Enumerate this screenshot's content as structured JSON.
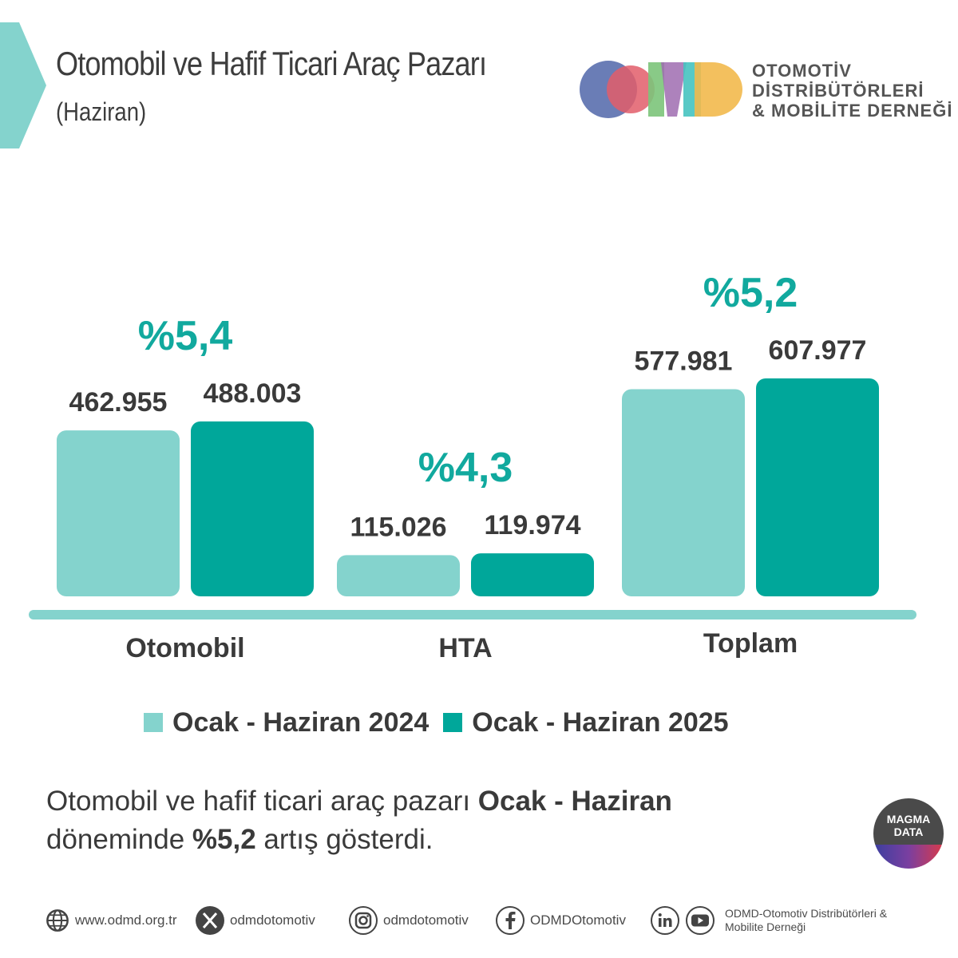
{
  "header": {
    "title": "Otomobil ve Hafif Ticari Araç Pazarı",
    "subtitle": "(Haziran)"
  },
  "logo": {
    "letters": "ODMD",
    "line1": "OTOMOTİV",
    "line2": "DİSTRİBÜTÖRLERİ",
    "line3": "& MOBİLİTE DERNEĞİ"
  },
  "colors": {
    "series_2024": "#84d3cd",
    "series_2025": "#00a79a",
    "accent": "#11a99e",
    "baseline": "#84d3cd",
    "text": "#3a3a3a"
  },
  "chart_data": {
    "type": "bar",
    "categories": [
      "Otomobil",
      "HTA",
      "Toplam"
    ],
    "series": [
      {
        "name": "Ocak - Haziran 2024",
        "values": [
          462955,
          115026,
          577981
        ],
        "labels": [
          "462.955",
          "115.026",
          "577.981"
        ]
      },
      {
        "name": "Ocak - Haziran 2025",
        "values": [
          488003,
          119974,
          607977
        ],
        "labels": [
          "488.003",
          "119.974",
          "607.977"
        ]
      }
    ],
    "growth_labels": [
      "%5,4",
      "%4,3",
      "%5,2"
    ],
    "title": "",
    "xlabel": "",
    "ylabel": "",
    "legend": "bottom",
    "grid": false
  },
  "summary": {
    "part1": "Otomobil ve hafif ticari araç pazarı ",
    "bold1": "Ocak - Haziran",
    "part2": "döneminde ",
    "bold2": "%5,2",
    "part3": " artış gösterdi."
  },
  "badge": {
    "line1": "MAGMA",
    "line2": "DATA"
  },
  "footer": {
    "website": "www.odmd.org.tr",
    "x_handle": "odmdotomotiv",
    "instagram": "odmdotomotiv",
    "facebook": "ODMDOtomotiv",
    "org_name": "ODMD-Otomotiv Distribütörleri & Mobilite Derneği",
    "icons": [
      "globe-icon",
      "x-icon",
      "instagram-icon",
      "facebook-icon",
      "linkedin-icon",
      "youtube-icon"
    ]
  }
}
